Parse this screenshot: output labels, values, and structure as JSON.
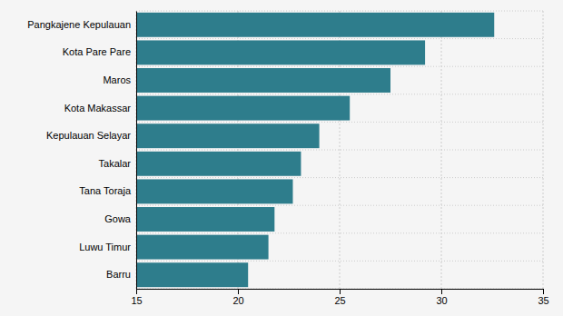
{
  "chart_data": {
    "type": "bar",
    "orientation": "horizontal",
    "categories": [
      "Barru",
      "Luwu Timur",
      "Gowa",
      "Tana Toraja",
      "Takalar",
      "Kepulauan Selayar",
      "Kota Makassar",
      "Maros",
      "Kota Pare Pare",
      "Pangkajene Kepulauan"
    ],
    "values": [
      20.5,
      21.5,
      21.8,
      22.7,
      23.1,
      24.0,
      25.5,
      27.5,
      29.2,
      32.6
    ],
    "color": "#2e7d8c",
    "xlim": [
      15,
      35
    ],
    "xticks": [
      15,
      20,
      25,
      30,
      35
    ],
    "grid": true
  }
}
